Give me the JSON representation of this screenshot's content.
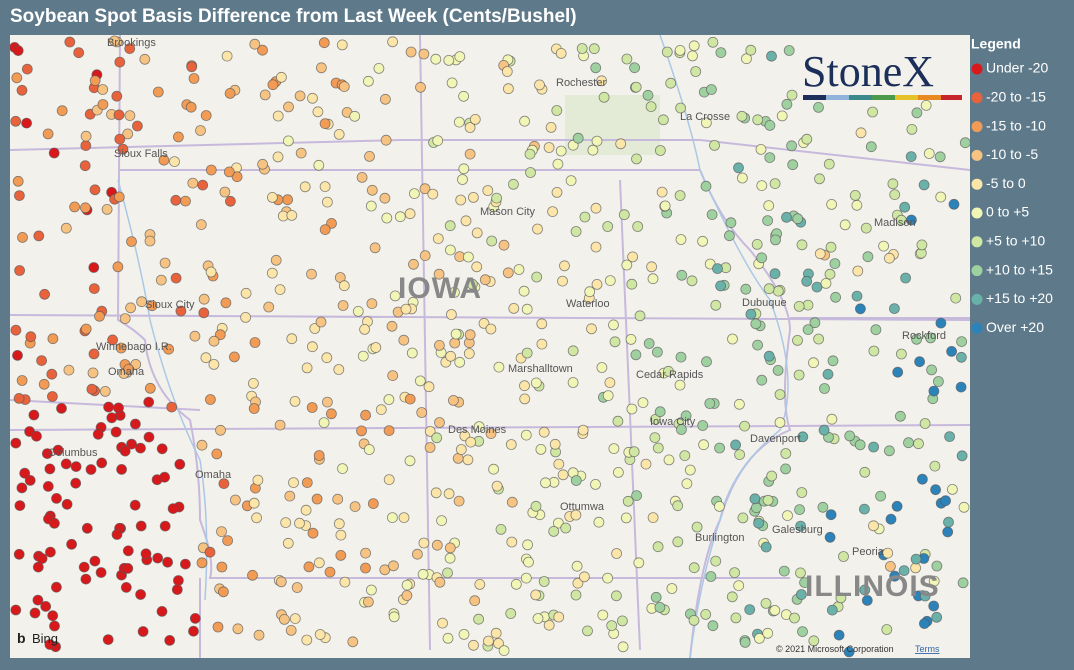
{
  "title": "Soybean Spot Basis Difference from Last Week (Cents/Bushel)",
  "logo": "StoneX",
  "legend": {
    "title": "Legend",
    "items": [
      {
        "label": "Under -20",
        "color": "#d7191c"
      },
      {
        "label": "-20 to -15",
        "color": "#e8623c"
      },
      {
        "label": "-15 to -10",
        "color": "#f29b55"
      },
      {
        "label": "-10 to -5",
        "color": "#f7c382"
      },
      {
        "label": "-5 to 0",
        "color": "#fbe5a8"
      },
      {
        "label": "0 to +5",
        "color": "#f1f5b6"
      },
      {
        "label": "+5 to +10",
        "color": "#cfe7a3"
      },
      {
        "label": "+10 to +15",
        "color": "#9fd1a0"
      },
      {
        "label": "+15 to +20",
        "color": "#69b1a9"
      },
      {
        "label": "Over +20",
        "color": "#2b83ba"
      }
    ]
  },
  "map": {
    "labels": [
      "Brookings",
      "Rochester",
      "La Crosse",
      "Sioux Falls",
      "Mason City",
      "Madison",
      "IOWA",
      "Sioux City",
      "Waterloo",
      "Dubuque",
      "Rockford",
      "Winnebago I.R.",
      "Omaha",
      "Marshalltown",
      "Cedar Rapids",
      "Iowa City",
      "Columbus",
      "Des Moines",
      "Davenport",
      "Omaha",
      "Ottumwa",
      "Galesburg",
      "Burlington",
      "Peoria",
      "ILLINOIS"
    ],
    "provider": "Bing",
    "copyright": "© 2021 Microsoft Corporation",
    "terms": "Terms"
  }
}
